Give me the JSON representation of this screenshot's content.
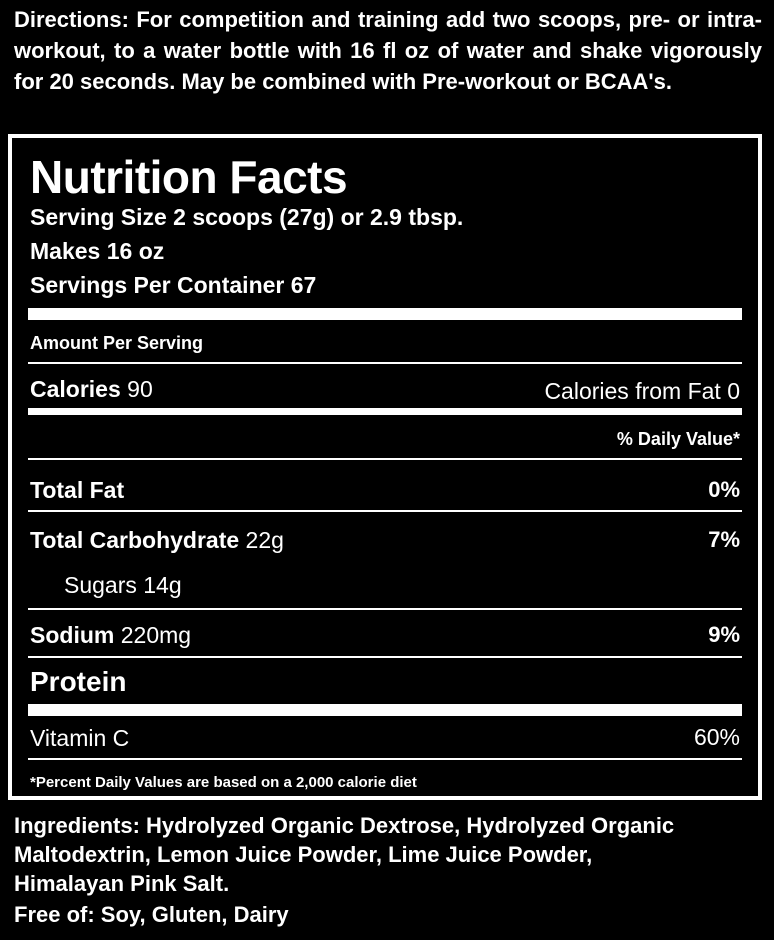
{
  "directions": {
    "label": "Directions:",
    "text": " For competition and training add two scoops, pre- or intra-workout, to a water bottle with 16 fl oz of water and shake vigorously for 20 seconds. May be combined with Pre-workout or BCAA's."
  },
  "nutrition": {
    "title": "Nutrition Facts",
    "serving_size": "Serving Size 2 scoops (27g) or 2.9 tbsp.",
    "makes": "Makes 16 oz",
    "servings_per_container": "Servings Per Container 67",
    "amount_per_serving": "Amount Per Serving",
    "calories_label": "Calories",
    "calories_value": " 90",
    "calories_from_fat": "Calories from Fat 0",
    "daily_value_header": "% Daily Value*",
    "rows": [
      {
        "label": "Total Fat",
        "amount": "",
        "dv": "0%"
      },
      {
        "label": "Total Carbohydrate",
        "amount": " 22g",
        "dv": "7%"
      },
      {
        "label": "",
        "amount": "Sugars 14g",
        "dv": ""
      },
      {
        "label": "Sodium",
        "amount": " 220mg",
        "dv": "9%"
      },
      {
        "label": "Protein",
        "amount": "",
        "dv": ""
      }
    ],
    "vitamin_c_label": "Vitamin C",
    "vitamin_c_dv": "60%",
    "footnote": "*Percent Daily Values are based on a 2,000 calorie diet"
  },
  "ingredients": {
    "label": "Ingredients:",
    "text": " Hydrolyzed Organic Dextrose, Hydrolyzed Organic Maltodextrin, Lemon Juice Powder, Lime Juice Powder, Himalayan Pink Salt."
  },
  "free_of": {
    "label": "Free of:",
    "text": " Soy, Gluten, Dairy"
  }
}
